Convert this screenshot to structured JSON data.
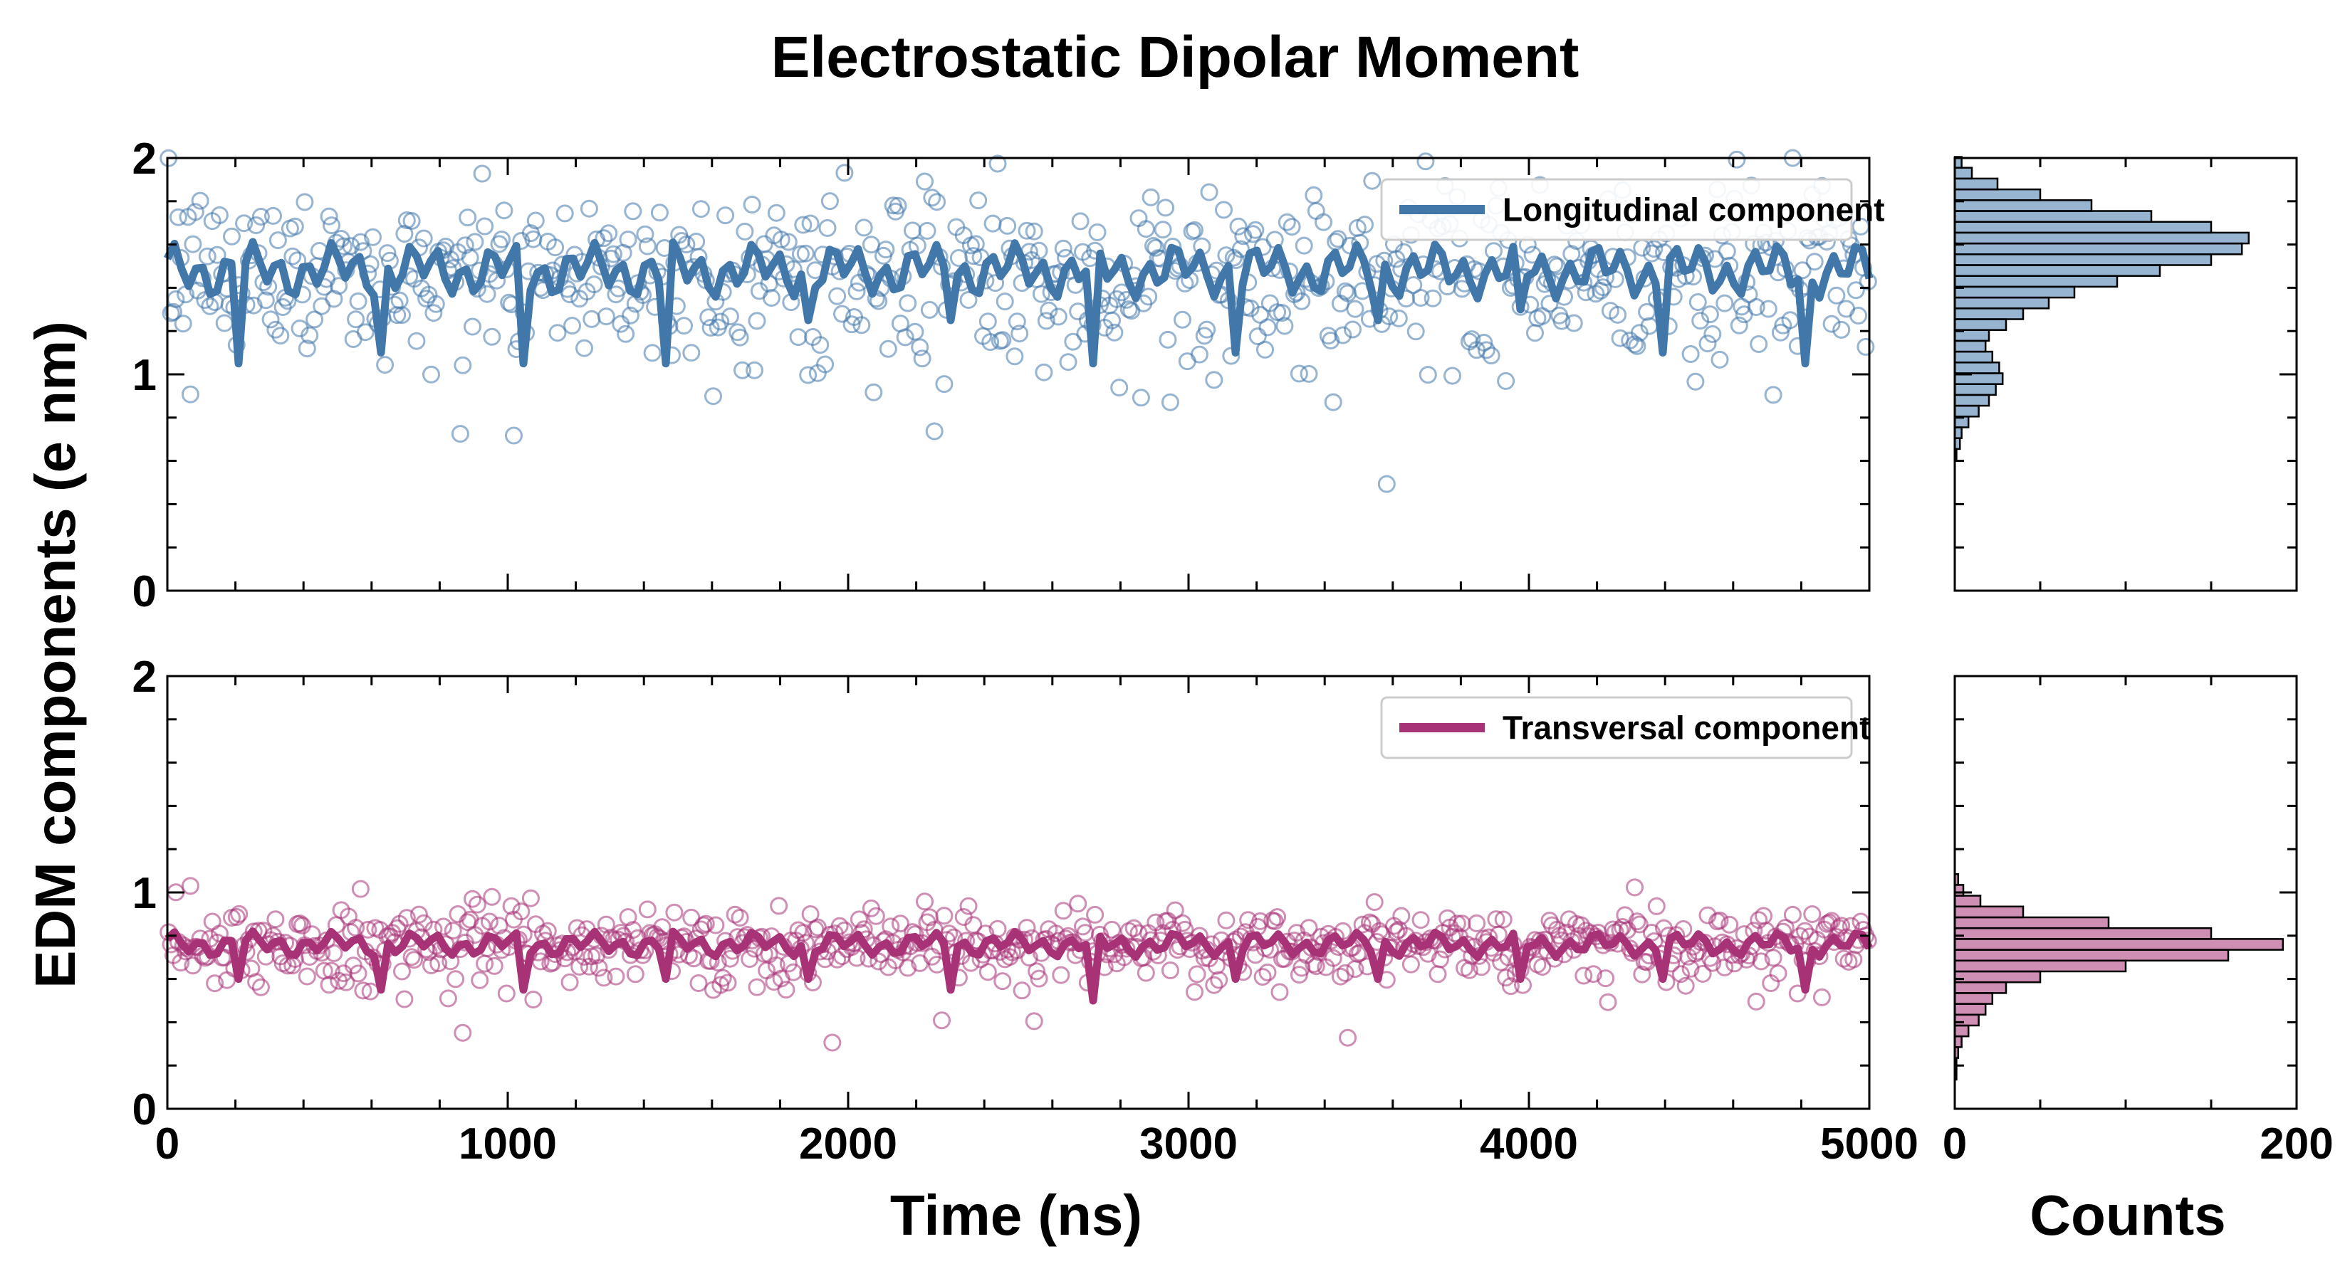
{
  "chart_data": {
    "type": "scatter",
    "title": "Electrostatic Dipolar Moment",
    "ylabel": "EDM components (e nm)",
    "xlabel": "Time (ns)",
    "hist_xlabel": "Counts",
    "xlim": [
      0,
      5000
    ],
    "ylim": [
      0,
      2
    ],
    "hist_xlim": [
      0,
      200
    ],
    "xticks": [
      "0",
      "1000",
      "2000",
      "3000",
      "4000",
      "5000"
    ],
    "yticks": [
      "0",
      "1",
      "2"
    ],
    "hist_xticks": [
      "0",
      "200"
    ],
    "grid": false,
    "series": [
      {
        "name": "Longitudinal component",
        "color": "#4277aa",
        "legend_position": "top-right",
        "mean": 1.48,
        "std": 0.22,
        "n_points": 700,
        "running_mean_min_dips": [
          1.05,
          1.1,
          1.05,
          1.05,
          1.25,
          1.25,
          1.05,
          1.1,
          1.25,
          1.3,
          1.1,
          1.05
        ],
        "histogram": {
          "bin_centers": [
            0.63,
            0.68,
            0.73,
            0.78,
            0.83,
            0.88,
            0.93,
            0.98,
            1.03,
            1.08,
            1.13,
            1.18,
            1.23,
            1.28,
            1.33,
            1.38,
            1.43,
            1.48,
            1.53,
            1.58,
            1.63,
            1.68,
            1.73,
            1.78,
            1.83,
            1.88,
            1.93,
            1.98
          ],
          "counts": [
            1,
            3,
            4,
            8,
            14,
            20,
            24,
            28,
            26,
            22,
            18,
            20,
            30,
            40,
            55,
            70,
            95,
            120,
            150,
            168,
            172,
            150,
            115,
            80,
            50,
            25,
            10,
            4
          ]
        }
      },
      {
        "name": "Transversal component",
        "color": "#a83276",
        "legend_position": "top-right",
        "mean": 0.76,
        "std": 0.1,
        "n_points": 700,
        "running_mean_min_dips": [
          0.6,
          0.55,
          0.55,
          0.6,
          0.6,
          0.55,
          0.5,
          0.6,
          0.6,
          0.6,
          0.6,
          0.55
        ],
        "histogram": {
          "bin_centers": [
            0.16,
            0.21,
            0.26,
            0.31,
            0.36,
            0.41,
            0.46,
            0.51,
            0.56,
            0.61,
            0.66,
            0.71,
            0.76,
            0.81,
            0.86,
            0.91,
            0.96,
            1.01,
            1.06
          ],
          "counts": [
            1,
            1,
            2,
            4,
            8,
            14,
            18,
            22,
            30,
            50,
            100,
            160,
            192,
            150,
            90,
            40,
            15,
            5,
            2
          ]
        }
      }
    ]
  }
}
